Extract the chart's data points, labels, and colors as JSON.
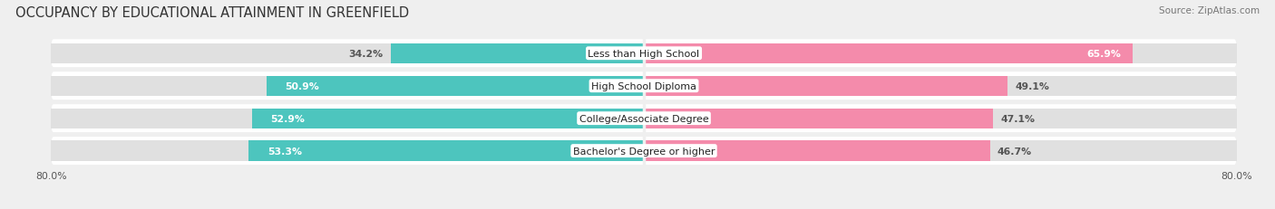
{
  "title": "OCCUPANCY BY EDUCATIONAL ATTAINMENT IN GREENFIELD",
  "source": "Source: ZipAtlas.com",
  "categories": [
    "Less than High School",
    "High School Diploma",
    "College/Associate Degree",
    "Bachelor's Degree or higher"
  ],
  "owner_values": [
    34.2,
    50.9,
    52.9,
    53.3
  ],
  "renter_values": [
    65.9,
    49.1,
    47.1,
    46.7
  ],
  "owner_color": "#4DC5BE",
  "renter_color": "#F48BAB",
  "background_color": "#efefef",
  "row_bg_color": "#ffffff",
  "bar_empty_color": "#e0e0e0",
  "axis_min": -80.0,
  "axis_max": 80.0,
  "title_fontsize": 10.5,
  "cat_fontsize": 8.0,
  "value_fontsize": 7.8,
  "legend_fontsize": 8.5,
  "source_fontsize": 7.5
}
